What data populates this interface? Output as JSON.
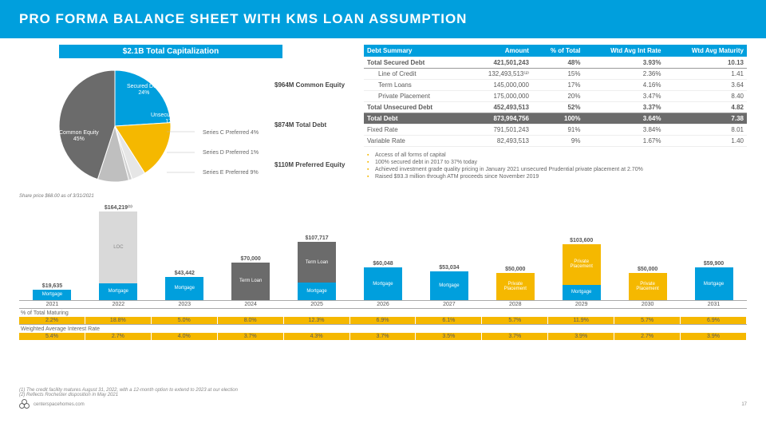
{
  "header": {
    "title": "PRO FORMA BALANCE SHEET WITH KMS LOAN ASSUMPTION"
  },
  "pie": {
    "title": "$2.1B Total Capitalization",
    "colors": {
      "secured": "#009fdd",
      "unsecured": "#f5b800",
      "seriesC": "#e6e6e6",
      "seriesD": "#d0d0d0",
      "seriesE": "#bfbfbf",
      "common": "#6b6b6b"
    },
    "slices": [
      {
        "id": "secured",
        "label": "Secured Debt",
        "pct": "24%"
      },
      {
        "id": "unsecured",
        "label": "Unsecured Debt",
        "pct": "17%"
      },
      {
        "id": "seriesC",
        "label": "Series C Preferred",
        "pct": "4%"
      },
      {
        "id": "seriesD",
        "label": "Series D Preferred",
        "pct": "1%"
      },
      {
        "id": "seriesE",
        "label": "Series E Preferred",
        "pct": "9%"
      },
      {
        "id": "common",
        "label": "Common Equity",
        "pct": "45%"
      }
    ],
    "stats": {
      "commonEquity": "$964M Common Equity",
      "totalDebt": "$874M Total Debt",
      "preferredEquity": "$110M Preferred Equity"
    },
    "sharePrice": "Share price $68.00 as of 3/31/2021"
  },
  "debtTable": {
    "headers": [
      "Debt Summary",
      "Amount",
      "% of Total",
      "Wtd Avg Int Rate",
      "Wtd Avg Maturity"
    ],
    "rows": [
      {
        "type": "bold",
        "c": [
          "Total Secured Debt",
          "421,501,243",
          "48%",
          "3.93%",
          "10.13"
        ]
      },
      {
        "type": "indent",
        "c": [
          "Line of Credit",
          "132,493,513⁽²⁾",
          "15%",
          "2.36%",
          "1.41"
        ]
      },
      {
        "type": "indent",
        "c": [
          "Term Loans",
          "145,000,000",
          "17%",
          "4.16%",
          "3.64"
        ]
      },
      {
        "type": "indent",
        "c": [
          "Private Placement",
          "175,000,000",
          "20%",
          "3.47%",
          "8.40"
        ]
      },
      {
        "type": "bold",
        "c": [
          "Total Unsecured Debt",
          "452,493,513",
          "52%",
          "3.37%",
          "4.82"
        ]
      },
      {
        "type": "total",
        "c": [
          "Total Debt",
          "873,994,756",
          "100%",
          "3.64%",
          "7.38"
        ]
      },
      {
        "type": "",
        "c": [
          "Fixed Rate",
          "791,501,243",
          "91%",
          "3.84%",
          "8.01"
        ]
      },
      {
        "type": "",
        "c": [
          "Variable Rate",
          "82,493,513",
          "9%",
          "1.67%",
          "1.40"
        ]
      }
    ]
  },
  "bullets": [
    "Access of all forms of capital",
    "100% secured debt in 2017 to 37% today",
    "Achieved investment grade quality pricing in January 2021 unsecured Prudential private placement at 2.70%",
    "Raised $93.3 million through ATM proceeds since November 2019"
  ],
  "barchart": {
    "max": 170000,
    "colors": {
      "Mortgage": "#009fdd",
      "LOC": "#d9d9d9",
      "Term Loan": "#6b6b6b",
      "Private Placement": "#f5b800"
    },
    "textcolor": {
      "LOC": "#888"
    },
    "years": [
      {
        "year": "2021",
        "total": "$19,635",
        "segs": [
          {
            "t": "Mortgage",
            "v": 19635
          }
        ]
      },
      {
        "year": "2022",
        "total": "$164,219⁽¹⁾",
        "segs": [
          {
            "t": "Mortgage",
            "v": 31726
          },
          {
            "t": "LOC",
            "v": 132493
          }
        ]
      },
      {
        "year": "2023",
        "total": "$43,442",
        "segs": [
          {
            "t": "Mortgage",
            "v": 43442
          }
        ]
      },
      {
        "year": "2024",
        "total": "$70,000",
        "segs": [
          {
            "t": "Term Loan",
            "v": 70000
          }
        ]
      },
      {
        "year": "2025",
        "total": "$107,717",
        "segs": [
          {
            "t": "Mortgage",
            "v": 32717
          },
          {
            "t": "Term Loan",
            "v": 75000
          }
        ]
      },
      {
        "year": "2026",
        "total": "$60,048",
        "segs": [
          {
            "t": "Mortgage",
            "v": 60048
          }
        ]
      },
      {
        "year": "2027",
        "total": "$53,034",
        "segs": [
          {
            "t": "Mortgage",
            "v": 53034
          }
        ]
      },
      {
        "year": "2028",
        "total": "$50,000",
        "segs": [
          {
            "t": "Private Placement",
            "v": 50000
          }
        ]
      },
      {
        "year": "2029",
        "total": "$103,600",
        "segs": [
          {
            "t": "Mortgage",
            "v": 28600
          },
          {
            "t": "Private Placement",
            "v": 75000
          }
        ]
      },
      {
        "year": "2030",
        "total": "$50,000",
        "segs": [
          {
            "t": "Private Placement",
            "v": 50000
          }
        ]
      },
      {
        "year": "2031",
        "total": "$59,900",
        "segs": [
          {
            "t": "Mortgage",
            "v": 59900
          }
        ]
      }
    ],
    "strips": [
      {
        "label": "% of Total Maturing",
        "cells": [
          "2.2%",
          "18.8%",
          "5.0%",
          "8.0%",
          "12.3%",
          "6.9%",
          "6.1%",
          "5.7%",
          "11.9%",
          "5.7%",
          "6.9%"
        ]
      },
      {
        "label": "Weighted Average Interest Rate",
        "cells": [
          "5.4%",
          "2.7%",
          "4.0%",
          "3.7%",
          "4.3%",
          "3.7%",
          "3.5%",
          "3.7%",
          "3.9%",
          "2.7%",
          "3.9%"
        ]
      }
    ]
  },
  "footnotes": [
    "(1)   The credit facility matures August 31, 2022, with a 12-month option to extend to 2023 at our election",
    "(2)   Reflects Rochester disposition in May 2021"
  ],
  "footer": {
    "site": "centerspacehomes.com",
    "page": "17"
  }
}
